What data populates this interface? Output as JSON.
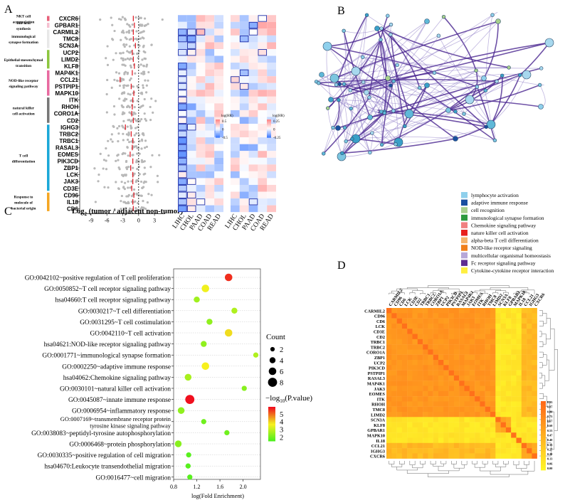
{
  "panels": {
    "a": "A",
    "b": "B",
    "c": "C",
    "d": "D"
  },
  "panel_a": {
    "categories": [
      {
        "label": "NKT cell accumulation",
        "color": "#e8607a",
        "genes": 1
      },
      {
        "label": "Bile acid synthesis",
        "color": "#f5c0d0",
        "genes": 1
      },
      {
        "label": "immunological synapse formation",
        "color": "#e8e8e8",
        "genes": 3
      },
      {
        "label": "Epithelial-mesenchymal transition",
        "color": "#8cc63f",
        "genes": 3
      },
      {
        "label": "NOD-like receptor signaling pathway",
        "color": "#e86aa0",
        "genes": 4
      },
      {
        "label": "natural killer cell activation",
        "color": "#777777",
        "genes": 4
      },
      {
        "label": "T cell differentiation",
        "color": "#1ba8d8",
        "genes": 10
      },
      {
        "label": "Response to molecule of bacterial origin",
        "color": "#f5a623",
        "genes": 3
      }
    ],
    "genes": [
      "CXCR6",
      "GPBAR1",
      "CARMIL2",
      "TMC8",
      "SCN3A",
      "UCP2",
      "LIMD2",
      "KLF8",
      "MAP4K1",
      "CCL21",
      "PSTPIP1",
      "MAPK10",
      "ITK",
      "RHOH",
      "CORO1A",
      "CD2",
      "IGHG3",
      "TRBC2",
      "TRBC1",
      "RASAL3",
      "EOMES",
      "PIK3CD",
      "ZBP1",
      "LCK",
      "JAK3",
      "CD3E",
      "CD96",
      "IL18",
      "CD6"
    ],
    "medians": [
      -1,
      -0.8,
      -1,
      -1,
      -0.6,
      -1.2,
      -1,
      -0.8,
      -1.2,
      -3.5,
      -1.4,
      -0.9,
      -1.1,
      -1.2,
      -1.3,
      -1,
      -2.5,
      -1.4,
      -1.1,
      -1.2,
      -1.6,
      -1.1,
      -1.5,
      -1.1,
      -1.1,
      -1.3,
      -0.9,
      -1.1,
      -1
    ],
    "xticks": [
      "-9",
      "-6",
      "-3",
      "0",
      "3"
    ],
    "xtick_values": [
      -9,
      -6,
      -3,
      0,
      3
    ],
    "xlabel_main": "Log",
    "xlabel_sub": "2",
    "xlabel_rest": " (tumor / adjacent non-tumor)",
    "cancers": [
      "LIHC",
      "CHOL",
      "PAAD",
      "COAD",
      "READ"
    ],
    "legend1": {
      "title": "log(HR)",
      "values": [
        "0.5",
        "0",
        "-0.5"
      ]
    },
    "legend2": {
      "title": "log(HR)",
      "values": [
        "0.25",
        "0",
        "-0.25"
      ]
    }
  },
  "panel_b": {
    "legend": [
      {
        "label": "lymphocyte activation",
        "color": "#8fd0ec"
      },
      {
        "label": "adaptive immune response",
        "color": "#1a4fa0"
      },
      {
        "label": "cell recognition",
        "color": "#a8d08d"
      },
      {
        "label": "immunological synapse formation",
        "color": "#2e9a3e"
      },
      {
        "label": "Chemokine signaling pathway",
        "color": "#f08080"
      },
      {
        "label": "nature killer cell activation",
        "color": "#e8201c"
      },
      {
        "label": "alpha-beta T cell differentiation",
        "color": "#f5b36a"
      },
      {
        "label": "NOD-like receptor signaling",
        "color": "#f07f1a"
      },
      {
        "label": "multicellular organismal homeostasis",
        "color": "#b7a7d8"
      },
      {
        "label": "Fc receptor signaling pathway",
        "color": "#5e2d91"
      },
      {
        "label": "Cytokine-cytokine receptor interaction",
        "color": "#ffef40"
      }
    ]
  },
  "chart_data": {
    "type": "scatter",
    "title": "",
    "xlabel": "log(Fold Enrichment)",
    "ylabel": "",
    "xlim": [
      0.8,
      2.3
    ],
    "xticks": [
      "0.8",
      "1.2",
      "1.6",
      "2.0"
    ],
    "xtick_values": [
      0.8,
      1.2,
      1.6,
      2.0
    ],
    "terms": [
      "GO:0042102~positive regulation of T cell proliferation",
      "GO:0050852~T cell receptor signaling pathway",
      "hsa04660:T cell receptor signaling pathway",
      "GO:0030217~T cell differentiation",
      "GO:0031295~T cell costimulation",
      "GO:0042110~T cell activation",
      "hsa04621:NOD-like receptor signaling pathway",
      "GO:0001771~immunological synapse formation",
      "GO:0002250~adaptive immune response",
      "hsa04062:Chemokine signaling pathway",
      "GO:0030101~natural killer cell activation",
      "GO:0045087~innate immune response",
      "GO:0006954~inflammatory response",
      "GO:0007169~transmembrane receptor protein tyrosine kinase signaling pathway",
      "GO:0038083~peptidyl-tyrosine autophosphorylation",
      "GO:0006468~protein phosphorylation",
      "GO:0030335~positive regulation of cell migration",
      "hsa04670:Leukocyte transendothelial migration",
      "GO:0016477~cell migration"
    ],
    "term_lines": [
      [
        "GO:0042102~positive regulation of T cell proliferation"
      ],
      [
        "GO:0050852~T cell receptor signaling pathway"
      ],
      [
        "hsa04660:T cell receptor signaling pathway"
      ],
      [
        "GO:0030217~T cell differentiation"
      ],
      [
        "GO:0031295~T cell costimulation"
      ],
      [
        "GO:0042110~T cell activation"
      ],
      [
        "hsa04621:NOD-like receptor signaling pathway"
      ],
      [
        "GO:0001771~immunological synapse formation"
      ],
      [
        "GO:0002250~adaptive immune response"
      ],
      [
        "hsa04062:Chemokine signaling pathway"
      ],
      [
        "GO:0030101~natural killer cell activation"
      ],
      [
        "GO:0045087~innate immune response"
      ],
      [
        "GO:0006954~inflammatory response"
      ],
      [
        "GO:0007169~transmembrane receptor protein",
        "tyrosine kinase signaling pathway"
      ],
      [
        "GO:0038083~peptidyl-tyrosine autophosphorylation"
      ],
      [
        "GO:0006468~protein phosphorylation"
      ],
      [
        "GO:0030335~positive regulation of cell migration"
      ],
      [
        "hsa04670:Leukocyte transendothelial migration"
      ],
      [
        "GO:0016477~cell migration"
      ]
    ],
    "x": [
      1.75,
      1.35,
      1.2,
      1.85,
      1.42,
      1.75,
      1.32,
      2.22,
      1.35,
      1.05,
      2.02,
      1.08,
      0.93,
      1.32,
      1.72,
      0.88,
      1.06,
      1.05,
      1.08
    ],
    "count": [
      6,
      6,
      4,
      4,
      4,
      6,
      4,
      3,
      6,
      5,
      3,
      8,
      5,
      3,
      3,
      5,
      3,
      3,
      3
    ],
    "neglog10p": [
      5.6,
      3.7,
      2.5,
      2.7,
      2.3,
      3.9,
      2.3,
      2.7,
      3.6,
      2.6,
      2.2,
      5.9,
      2.3,
      1.9,
      1.9,
      2.2,
      1.6,
      1.6,
      1.6
    ],
    "size_legend": {
      "title": "Count",
      "values": [
        2,
        4,
        6,
        8
      ]
    },
    "color_legend": {
      "title": "−log",
      "title_sub": "10",
      "title_rest": "(P.value)",
      "ticks": [
        5,
        4,
        3,
        2
      ],
      "range": [
        1.5,
        5.9
      ]
    }
  },
  "panel_d": {
    "order": [
      "CARMIL2",
      "CD96",
      "CD6",
      "LCK",
      "CD3E",
      "CD2",
      "TRBC1",
      "TRBC2",
      "CORO1A",
      "ZBP1",
      "UCP2",
      "PIK3CD",
      "PSTPIP1",
      "RASAL3",
      "MAP4K1",
      "JAK3",
      "EOMES",
      "ITK",
      "RHOH",
      "TMC8",
      "LIMD2",
      "SCN3A",
      "KLF8",
      "GPBAR1",
      "MAPK10",
      "IL18",
      "CCL21",
      "IGHG3",
      "CXCR6"
    ],
    "colorbar": [
      "0.93",
      "0.87",
      "0.80",
      "0.73",
      "0.67",
      "0.60",
      "0.53",
      "0.47",
      "0.40",
      "0.33",
      "0.27",
      "0.20",
      "0.13",
      "0.06",
      "0.00"
    ]
  }
}
